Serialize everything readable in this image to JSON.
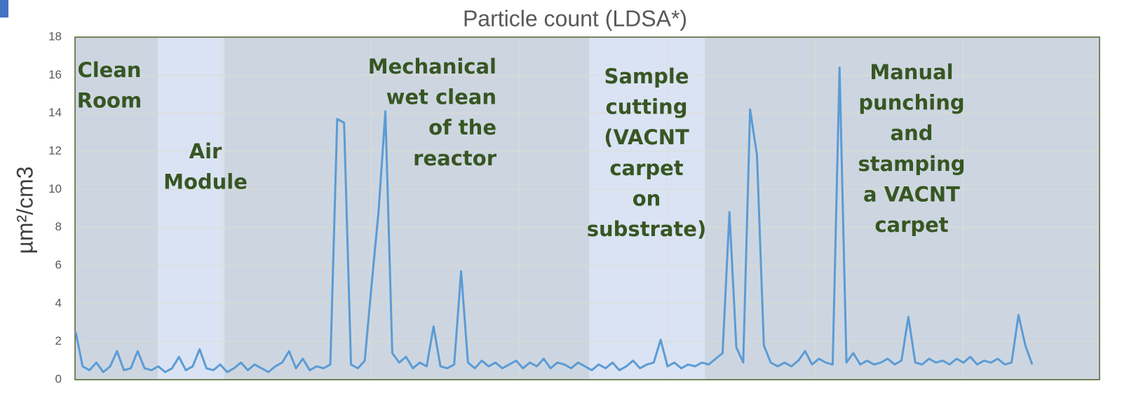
{
  "chart_data": {
    "type": "line",
    "title": "Particle count (LDSA*)",
    "y_label": "µm²/cm3",
    "ylim": [
      0,
      18
    ],
    "yticks": [
      0,
      2,
      4,
      6,
      8,
      10,
      12,
      14,
      16,
      18
    ],
    "grid": true,
    "color": "#5b9bd5",
    "annotations": [
      {
        "lines": [
          "Clean",
          "Room"
        ]
      },
      {
        "lines": [
          "Air",
          "Module"
        ]
      },
      {
        "lines": [
          "Mechanical",
          "wet clean",
          "of the",
          "reactor"
        ]
      },
      {
        "lines": [
          "Sample",
          "cutting",
          "(VACNT",
          "carpet",
          "on",
          "substrate)"
        ]
      },
      {
        "lines": [
          "Manual",
          "punching",
          "and",
          "stamping",
          "a VACNT",
          "carpet"
        ]
      }
    ],
    "values": [
      2.5,
      0.7,
      0.5,
      0.9,
      0.4,
      0.7,
      1.5,
      0.5,
      0.6,
      1.5,
      0.6,
      0.5,
      0.7,
      0.4,
      0.6,
      1.2,
      0.5,
      0.7,
      1.6,
      0.6,
      0.5,
      0.8,
      0.4,
      0.6,
      0.9,
      0.5,
      0.8,
      0.6,
      0.4,
      0.7,
      0.9,
      1.5,
      0.6,
      1.1,
      0.5,
      0.7,
      0.6,
      0.8,
      13.7,
      13.5,
      0.8,
      0.6,
      1.0,
      5.0,
      8.8,
      14.1,
      1.4,
      0.9,
      1.2,
      0.6,
      0.9,
      0.7,
      2.8,
      0.7,
      0.6,
      0.8,
      5.7,
      0.9,
      0.6,
      1.0,
      0.7,
      0.9,
      0.6,
      0.8,
      1.0,
      0.6,
      0.9,
      0.7,
      1.1,
      0.6,
      0.9,
      0.8,
      0.6,
      0.9,
      0.7,
      0.5,
      0.8,
      0.6,
      0.9,
      0.5,
      0.7,
      1.0,
      0.6,
      0.8,
      0.9,
      2.1,
      0.7,
      0.9,
      0.6,
      0.8,
      0.7,
      0.9,
      0.8,
      1.1,
      1.4,
      8.8,
      1.7,
      0.9,
      14.2,
      11.8,
      1.8,
      0.9,
      0.7,
      0.9,
      0.7,
      1.0,
      1.5,
      0.8,
      1.1,
      0.9,
      0.8,
      16.4,
      0.9,
      1.4,
      0.8,
      1.0,
      0.8,
      0.9,
      1.1,
      0.8,
      1.0,
      3.3,
      0.9,
      0.8,
      1.1,
      0.9,
      1.0,
      0.8,
      1.1,
      0.9,
      1.2,
      0.8,
      1.0,
      0.9,
      1.1,
      0.8,
      0.9,
      3.4,
      1.8,
      0.8
    ]
  }
}
